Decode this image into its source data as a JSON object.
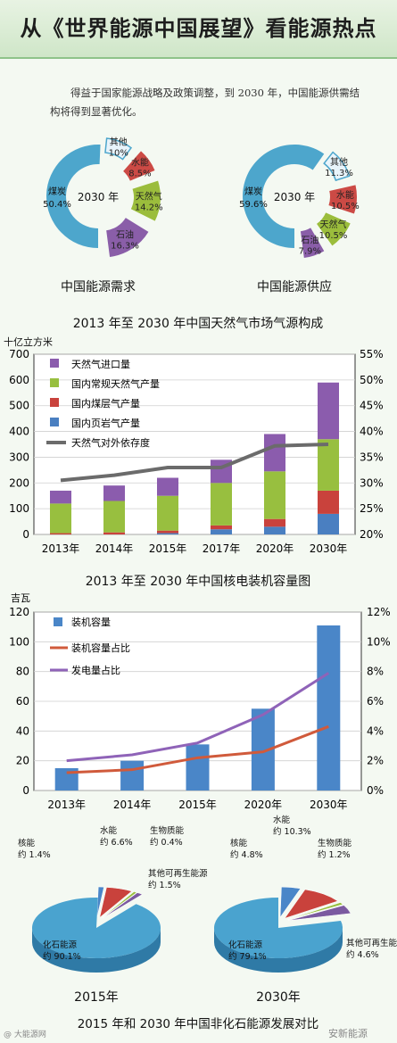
{
  "header": {
    "title": "从《世界能源中国展望》看能源热点",
    "intro": "得益于国家能源战略及政策调整，到 2030 年，中国能源供需结构将得到显著优化。"
  },
  "chart_data": [
    {
      "type": "pie",
      "variant": "donut",
      "title": "中国能源需求",
      "center_label": "2030 年",
      "slices": [
        {
          "label": "煤炭",
          "value": 50.4,
          "value_label": "50.4%",
          "color": "#4da6cc"
        },
        {
          "label": "其他",
          "value": 10.0,
          "value_label": "10%",
          "color": "#4da6cc"
        },
        {
          "label": "水能",
          "value": 8.5,
          "value_label": "8.5%",
          "color": "#cc4a45"
        },
        {
          "label": "天然气",
          "value": 14.2,
          "value_label": "14.2%",
          "color": "#9bbd3c"
        },
        {
          "label": "石油",
          "value": 16.3,
          "value_label": "16.3%",
          "color": "#8a5ea8"
        }
      ]
    },
    {
      "type": "pie",
      "variant": "donut",
      "title": "中国能源供应",
      "center_label": "2030 年",
      "slices": [
        {
          "label": "煤炭",
          "value": 59.6,
          "value_label": "59.6%",
          "color": "#4da6cc"
        },
        {
          "label": "其他",
          "value": 11.3,
          "value_label": "11.3%",
          "color": "#4da6cc"
        },
        {
          "label": "水能",
          "value": 10.5,
          "value_label": "10.5%",
          "color": "#cc4a45"
        },
        {
          "label": "天然气",
          "value": 10.5,
          "value_label": "10.5%",
          "color": "#9bbd3c"
        },
        {
          "label": "石油",
          "value": 7.9,
          "value_label": "7.9%",
          "color": "#8a5ea8"
        }
      ]
    },
    {
      "type": "bar",
      "stacked": true,
      "title": "2013 年至 2030 年中国天然气市场气源构成",
      "ylabel": "十亿立方米",
      "categories": [
        "2013年",
        "2014年",
        "2015年",
        "2017年",
        "2020年",
        "2030年"
      ],
      "ylim": [
        0,
        700
      ],
      "yticks": [
        0,
        100,
        200,
        300,
        400,
        500,
        600,
        700
      ],
      "y2lim": [
        20,
        55
      ],
      "y2ticks": [
        "20%",
        "25%",
        "30%",
        "35%",
        "40%",
        "45%",
        "50%",
        "55%"
      ],
      "series": [
        {
          "name": "国内页岩气产量",
          "color": "#4a7fc1",
          "values": [
            0,
            0,
            5,
            20,
            30,
            80
          ]
        },
        {
          "name": "国内煤层气产量",
          "color": "#c9423c",
          "values": [
            5,
            8,
            10,
            15,
            30,
            90
          ]
        },
        {
          "name": "国内常规天然气产量",
          "color": "#98bf3f",
          "values": [
            115,
            122,
            135,
            165,
            185,
            200
          ]
        },
        {
          "name": "天然气进口量",
          "color": "#8b5cad",
          "values": [
            50,
            60,
            70,
            90,
            145,
            220
          ]
        }
      ],
      "line_series": {
        "name": "天然气对外依存度",
        "color": "#6b6b6b",
        "values": [
          30.5,
          31.5,
          33.0,
          33.0,
          37.2,
          37.5
        ]
      },
      "legend_order": [
        "天然气进口量",
        "国内常规天然气产量",
        "国内煤层气产量",
        "国内页岩气产量",
        "天然气对外依存度"
      ]
    },
    {
      "type": "bar",
      "title": "2013 年至 2030 年中国核电装机容量图",
      "ylabel": "吉瓦",
      "categories": [
        "2013年",
        "2014年",
        "2015年",
        "2020年",
        "2030年"
      ],
      "ylim": [
        0,
        120
      ],
      "yticks": [
        0,
        20,
        40,
        60,
        80,
        100,
        120
      ],
      "y2lim": [
        0,
        12
      ],
      "y2ticks": [
        "0%",
        "2%",
        "4%",
        "6%",
        "8%",
        "10%",
        "12%"
      ],
      "series": [
        {
          "name": "装机容量",
          "color": "#4a86c8",
          "values": [
            15,
            20,
            31,
            55,
            111
          ]
        }
      ],
      "line_series": [
        {
          "name": "装机容量占比",
          "color": "#d05a3b",
          "values": [
            1.2,
            1.4,
            2.2,
            2.6,
            4.3
          ]
        },
        {
          "name": "发电量占比",
          "color": "#8f63b8",
          "values": [
            2.0,
            2.4,
            3.2,
            5.1,
            7.9
          ]
        }
      ]
    },
    {
      "type": "pie",
      "variant": "3d-exploded",
      "title": "2015 年和 2030 年中国非化石能源发展对比",
      "pies": [
        {
          "label": "2015年",
          "slices": [
            {
              "label": "化石能源",
              "value": 90.1,
              "value_label": "约 90.1%",
              "color": "#4aa3cf"
            },
            {
              "label": "核能",
              "value": 1.4,
              "value_label": "约 1.4%",
              "color": "#4a86c8"
            },
            {
              "label": "水能",
              "value": 6.6,
              "value_label": "约 6.6%",
              "color": "#c9423c"
            },
            {
              "label": "生物质能",
              "value": 0.4,
              "value_label": "约 0.4%",
              "color": "#98bf3f"
            },
            {
              "label": "其他可再生能源",
              "value": 1.5,
              "value_label": "约 1.5%",
              "color": "#7b5aa0"
            }
          ]
        },
        {
          "label": "2030年",
          "slices": [
            {
              "label": "化石能源",
              "value": 79.1,
              "value_label": "约 79.1%",
              "color": "#4aa3cf"
            },
            {
              "label": "核能",
              "value": 4.8,
              "value_label": "约 4.8%",
              "color": "#4a86c8"
            },
            {
              "label": "水能",
              "value": 10.3,
              "value_label": "约 10.3%",
              "color": "#c9423c"
            },
            {
              "label": "生物质能",
              "value": 1.2,
              "value_label": "约 1.2%",
              "color": "#98bf3f"
            },
            {
              "label": "其他可再生能源",
              "value": 4.6,
              "value_label": "约 4.6%",
              "color": "#7b5aa0"
            }
          ]
        }
      ]
    }
  ],
  "watermarks": {
    "left": "@ 大能源网",
    "right": "安新能源"
  }
}
